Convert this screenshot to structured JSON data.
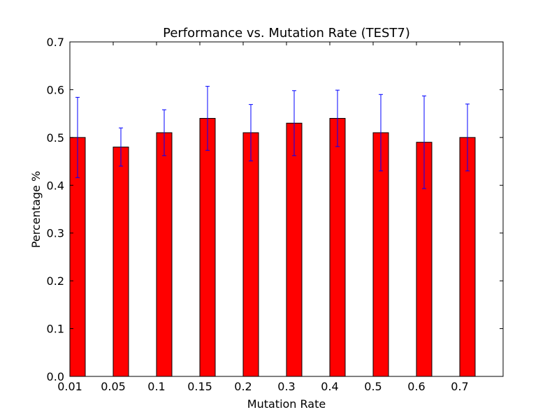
{
  "chart_data": {
    "type": "bar",
    "title": "Performance vs. Mutation Rate (TEST7)",
    "xlabel": "Mutation Rate",
    "ylabel": "Percentage %",
    "categories": [
      "0.01",
      "0.05",
      "0.1",
      "0.15",
      "0.2",
      "0.3",
      "0.4",
      "0.5",
      "0.6",
      "0.7"
    ],
    "values": [
      0.5,
      0.48,
      0.51,
      0.54,
      0.51,
      0.53,
      0.54,
      0.51,
      0.49,
      0.5
    ],
    "errors": [
      0.084,
      0.04,
      0.048,
      0.067,
      0.059,
      0.068,
      0.059,
      0.08,
      0.097,
      0.07
    ],
    "ylim": [
      0,
      0.7
    ],
    "yticks": [
      "0.0",
      "0.1",
      "0.2",
      "0.3",
      "0.4",
      "0.5",
      "0.6",
      "0.7"
    ],
    "grid": false,
    "bar_color": "#ff0000",
    "error_color": "#0000ff"
  }
}
